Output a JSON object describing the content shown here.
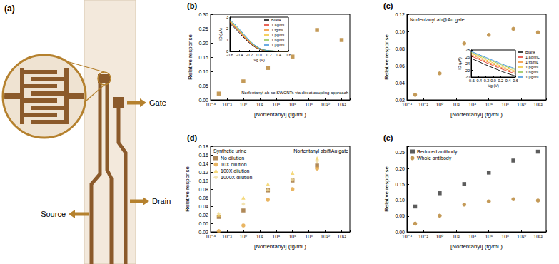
{
  "panel_a": {
    "label": "(a)",
    "labels": {
      "gate": "Gate",
      "source": "Source",
      "drain": "Drain"
    }
  },
  "chart_data": [
    {
      "type": "scatter",
      "title": "(b)",
      "x_label": "[Norfentanyl] (fg/mL)",
      "y_label": "Relative response",
      "annotations": [
        "Norfentanyl ab-sc-SWCNTs via direct coupling approach"
      ],
      "log": "x",
      "grid": false,
      "xlim": [
        0.0001,
        10000000000000
      ],
      "xticks": [
        {
          "value": 0.0001,
          "label": "10⁻⁴"
        },
        {
          "value": 0.01,
          "label": "10⁻²"
        },
        {
          "value": 1,
          "label": "10⁰"
        },
        {
          "value": 100,
          "label": "10²"
        },
        {
          "value": 10000,
          "label": "10⁴"
        },
        {
          "value": 1000000,
          "label": "10⁶"
        },
        {
          "value": 100000000,
          "label": "10⁸"
        },
        {
          "value": 10000000000,
          "label": "10¹⁰"
        },
        {
          "value": 1000000000000,
          "label": "10¹²"
        }
      ],
      "ylim": [
        0,
        0.3
      ],
      "yticks": [
        {
          "value": 0,
          "label": "0.00"
        },
        0.05,
        {
          "value": 0.1,
          "label": "0.10"
        },
        0.15,
        {
          "value": 0.2,
          "label": "0.20"
        },
        0.25,
        {
          "value": 0.3,
          "label": "0.30"
        }
      ],
      "x": [
        0.001,
        1,
        1000,
        1000000,
        1000000000,
        1000000000000
      ],
      "values": [
        0.022,
        0.065,
        0.112,
        0.152,
        0.245,
        0.21
      ],
      "color": "#b5812e",
      "marker": "square"
    },
    {
      "type": "line",
      "x_label": "Vg (V)",
      "y_label": "ID (µA)",
      "grid": false,
      "legend": "upper right",
      "xlim": [
        -0.6,
        0.6
      ],
      "xticks": [
        -0.6,
        -0.4,
        -0.2,
        {
          "value": 0,
          "label": "0.0"
        },
        0.2,
        0.4,
        0.6
      ],
      "ylim": [
        0,
        3
      ],
      "yticks": [
        0,
        1,
        2,
        3
      ],
      "x": [
        -0.6,
        -0.5,
        -0.4,
        -0.3,
        -0.2,
        -0.1,
        0,
        0.1,
        0.2,
        0.3,
        0.4,
        0.5,
        0.6
      ],
      "series": [
        {
          "name": "Blank",
          "color": "#000000",
          "values": [
            2.45,
            2.05,
            1.6,
            1.15,
            0.75,
            0.42,
            0.2,
            0.09,
            0.05,
            0.03,
            0.02,
            0.02,
            0.02
          ]
        },
        {
          "name": "1 ag/mL",
          "color": "#e03020",
          "values": [
            2.55,
            2.14,
            1.69,
            1.22,
            0.8,
            0.45,
            0.22,
            0.1,
            0.05,
            0.03,
            0.02,
            0.02,
            0.02
          ]
        },
        {
          "name": "1 fg/mL",
          "color": "#f08a24",
          "values": [
            2.6,
            2.19,
            1.74,
            1.27,
            0.84,
            0.48,
            0.24,
            0.11,
            0.06,
            0.03,
            0.02,
            0.02,
            0.02
          ]
        },
        {
          "name": "1 pg/mL",
          "color": "#f2c12e",
          "values": [
            2.66,
            2.25,
            1.8,
            1.32,
            0.88,
            0.51,
            0.26,
            0.12,
            0.06,
            0.03,
            0.02,
            0.02,
            0.02
          ]
        },
        {
          "name": "1 ng/mL",
          "color": "#8cc04a",
          "values": [
            2.7,
            2.3,
            1.85,
            1.37,
            0.92,
            0.55,
            0.28,
            0.13,
            0.07,
            0.04,
            0.02,
            0.02,
            0.02
          ]
        },
        {
          "name": "1 µg/mL",
          "color": "#3a8fd9",
          "values": [
            2.78,
            2.38,
            1.93,
            1.44,
            0.98,
            0.59,
            0.3,
            0.14,
            0.07,
            0.04,
            0.02,
            0.02,
            0.02
          ]
        }
      ]
    },
    {
      "type": "scatter",
      "title": "(c)",
      "x_label": "[Norfentanyl] (fg/mL)",
      "y_label": "Relative response",
      "annotations": [
        "Norfentanyl ab@Au gate"
      ],
      "log": "x",
      "grid": false,
      "xlim": [
        0.0001,
        10000000000000
      ],
      "xticks": [
        {
          "value": 0.0001,
          "label": "10⁻⁴"
        },
        {
          "value": 0.01,
          "label": "10⁻²"
        },
        {
          "value": 1,
          "label": "10⁰"
        },
        {
          "value": 100,
          "label": "10²"
        },
        {
          "value": 10000,
          "label": "10⁴"
        },
        {
          "value": 1000000,
          "label": "10⁶"
        },
        {
          "value": 100000000,
          "label": "10⁸"
        },
        {
          "value": 10000000000,
          "label": "10¹⁰"
        },
        {
          "value": 1000000000000,
          "label": "10¹²"
        }
      ],
      "ylim": [
        0.02,
        0.12
      ],
      "yticks": [
        0.02,
        0.04,
        0.06,
        0.08,
        {
          "value": 0.1,
          "label": "0.10"
        },
        0.12
      ],
      "x": [
        0.001,
        1,
        1000,
        1000000,
        1000000000,
        1000000000000
      ],
      "values": [
        0.026,
        0.051,
        0.086,
        0.096,
        0.103,
        0.099
      ],
      "color": "#b5812e",
      "marker": "circle"
    },
    {
      "type": "line",
      "x_label": "Vg (V)",
      "y_label": "ID (µA)",
      "grid": false,
      "legend": "right",
      "xlim": [
        -0.6,
        0.6
      ],
      "xticks": [
        -0.6,
        -0.4,
        -0.2,
        {
          "value": 0,
          "label": "0.0"
        },
        0.2,
        0.4,
        0.6
      ],
      "ylim": [
        20,
        28
      ],
      "yticks": [
        20,
        22,
        24,
        26,
        28
      ],
      "x": [
        -0.6,
        -0.4,
        -0.2,
        0,
        0.2,
        0.4,
        0.6
      ],
      "series": [
        {
          "name": "Blank",
          "color": "#000000",
          "values": [
            25.5,
            24.6,
            23.6,
            22.7,
            21.8,
            21.0,
            20.3
          ]
        },
        {
          "name": "1 ag/mL",
          "color": "#e03020",
          "values": [
            26.2,
            25.3,
            24.3,
            23.4,
            22.5,
            21.7,
            21.0
          ]
        },
        {
          "name": "1 fg/mL",
          "color": "#f08a24",
          "values": [
            26.6,
            25.7,
            24.7,
            23.8,
            22.9,
            22.1,
            21.4
          ]
        },
        {
          "name": "1 pg/mL",
          "color": "#f2c12e",
          "values": [
            27.0,
            26.1,
            25.1,
            24.2,
            23.3,
            22.5,
            21.8
          ]
        },
        {
          "name": "1 ng/mL",
          "color": "#8cc04a",
          "values": [
            27.3,
            26.4,
            25.5,
            24.6,
            23.7,
            22.9,
            22.2
          ]
        },
        {
          "name": "1 µg/mL",
          "color": "#3a8fd9",
          "values": [
            27.6,
            26.7,
            25.8,
            24.9,
            24.0,
            23.2,
            22.5
          ]
        }
      ]
    },
    {
      "type": "scatter",
      "title": "(d)",
      "x_label": "[Norfentanyl] (fg/mL)",
      "y_label": "Relative response",
      "annotations": [
        "Norfentanyl ab@Au gate",
        "Synthetic urine"
      ],
      "log": "x",
      "grid": false,
      "legend": "upper left",
      "xlim": [
        0.0001,
        10000000000000
      ],
      "xticks": [
        {
          "value": 0.0001,
          "label": "10⁻⁴"
        },
        {
          "value": 0.01,
          "label": "10⁻²"
        },
        {
          "value": 1,
          "label": "10⁰"
        },
        {
          "value": 100,
          "label": "10²"
        },
        {
          "value": 10000,
          "label": "10⁴"
        },
        {
          "value": 1000000,
          "label": "10⁶"
        },
        {
          "value": 100000000,
          "label": "10⁸"
        },
        {
          "value": 10000000000,
          "label": "10¹⁰"
        },
        {
          "value": 1000000000000,
          "label": "10¹²"
        }
      ],
      "ylim": [
        -0.02,
        0.18
      ],
      "yticks": [
        -0.02,
        {
          "value": 0,
          "label": "0.00"
        },
        0.02,
        0.04,
        0.06,
        0.08,
        {
          "value": 0.1,
          "label": "0.10"
        },
        0.12,
        0.14,
        0.16,
        0.18
      ],
      "x": [
        0.001,
        1,
        1000,
        1000000,
        1000000000
      ],
      "series": [
        {
          "name": "No dilution",
          "color": "#9c6b2e",
          "marker": "square",
          "values": [
            0.015,
            0.03,
            0.077,
            0.1,
            0.135
          ]
        },
        {
          "name": "10X dilution",
          "color": "#e3a33b",
          "marker": "circle",
          "values": [
            -0.018,
            -0.005,
            0.055,
            0.08,
            0.128
          ]
        },
        {
          "name": "100X dilution",
          "color": "#f2cf5b",
          "marker": "triangle",
          "values": [
            0.02,
            0.06,
            0.092,
            0.118,
            0.152
          ]
        },
        {
          "name": "1000X dilution",
          "color": "#f0dc9c",
          "marker": "diamond",
          "values": [
            0.022,
            0.045,
            0.078,
            0.102,
            0.145
          ]
        }
      ]
    },
    {
      "type": "scatter",
      "title": "(e)",
      "x_label": "[Norfentanyl] (fg/mL)",
      "y_label": "Relative response",
      "log": "x",
      "grid": false,
      "legend": "upper left",
      "xlim": [
        0.0001,
        10000000000000
      ],
      "xticks": [
        {
          "value": 0.0001,
          "label": "10⁻⁴"
        },
        {
          "value": 0.01,
          "label": "10⁻²"
        },
        {
          "value": 1,
          "label": "10⁰"
        },
        {
          "value": 100,
          "label": "10²"
        },
        {
          "value": 10000,
          "label": "10⁴"
        },
        {
          "value": 1000000,
          "label": "10⁶"
        },
        {
          "value": 100000000,
          "label": "10⁸"
        },
        {
          "value": 10000000000,
          "label": "10¹⁰"
        },
        {
          "value": 1000000000000,
          "label": "10¹²"
        }
      ],
      "ylim": [
        0,
        0.27
      ],
      "yticks": [
        {
          "value": 0,
          "label": "0.00"
        },
        0.05,
        {
          "value": 0.1,
          "label": "0.10"
        },
        0.15,
        {
          "value": 0.2,
          "label": "0.20"
        },
        0.25
      ],
      "x": [
        0.001,
        1,
        1000,
        1000000,
        1000000000,
        1000000000000
      ],
      "series": [
        {
          "name": "Reduced antibody",
          "color": "#333333",
          "marker": "square",
          "values": [
            0.08,
            0.122,
            0.151,
            0.187,
            0.225,
            0.253
          ]
        },
        {
          "name": "Whole antibody",
          "color": "#b5812e",
          "marker": "circle",
          "values": [
            0.026,
            0.051,
            0.086,
            0.096,
            0.103,
            0.099
          ]
        }
      ]
    }
  ]
}
